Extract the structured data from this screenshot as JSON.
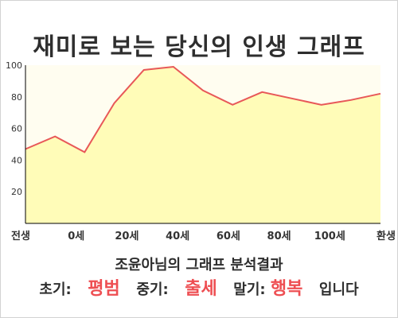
{
  "title": "재미로 보는 당신의 인생 그래프",
  "colors": {
    "plot_bg": "#fffdf0",
    "area_fill": "#fffcb8",
    "line": "#e85858",
    "highlight": "#ee4e52"
  },
  "chart_data": {
    "type": "area",
    "x_positions": [
      0,
      10,
      20,
      30,
      40,
      50,
      60,
      70,
      80,
      90,
      100,
      110,
      120
    ],
    "x_tick_labels": [
      "전생",
      "0세",
      "20세",
      "40세",
      "60세",
      "80세",
      "100세",
      "환생"
    ],
    "values": [
      47,
      55,
      45,
      76,
      97,
      99,
      84,
      75,
      83,
      79,
      75,
      78,
      82
    ],
    "ylim": [
      0,
      100
    ],
    "yticks": [
      20,
      40,
      60,
      80,
      100
    ],
    "grid": false,
    "title": "",
    "xlabel": "",
    "ylabel": ""
  },
  "result": {
    "title": "조윤아님의 그래프 분석결과",
    "early_label": "초기:",
    "early_value": "평범",
    "mid_label": "중기:",
    "mid_value": "출세",
    "late_label": "말기:",
    "late_value": "행복",
    "ending": "입니다"
  }
}
